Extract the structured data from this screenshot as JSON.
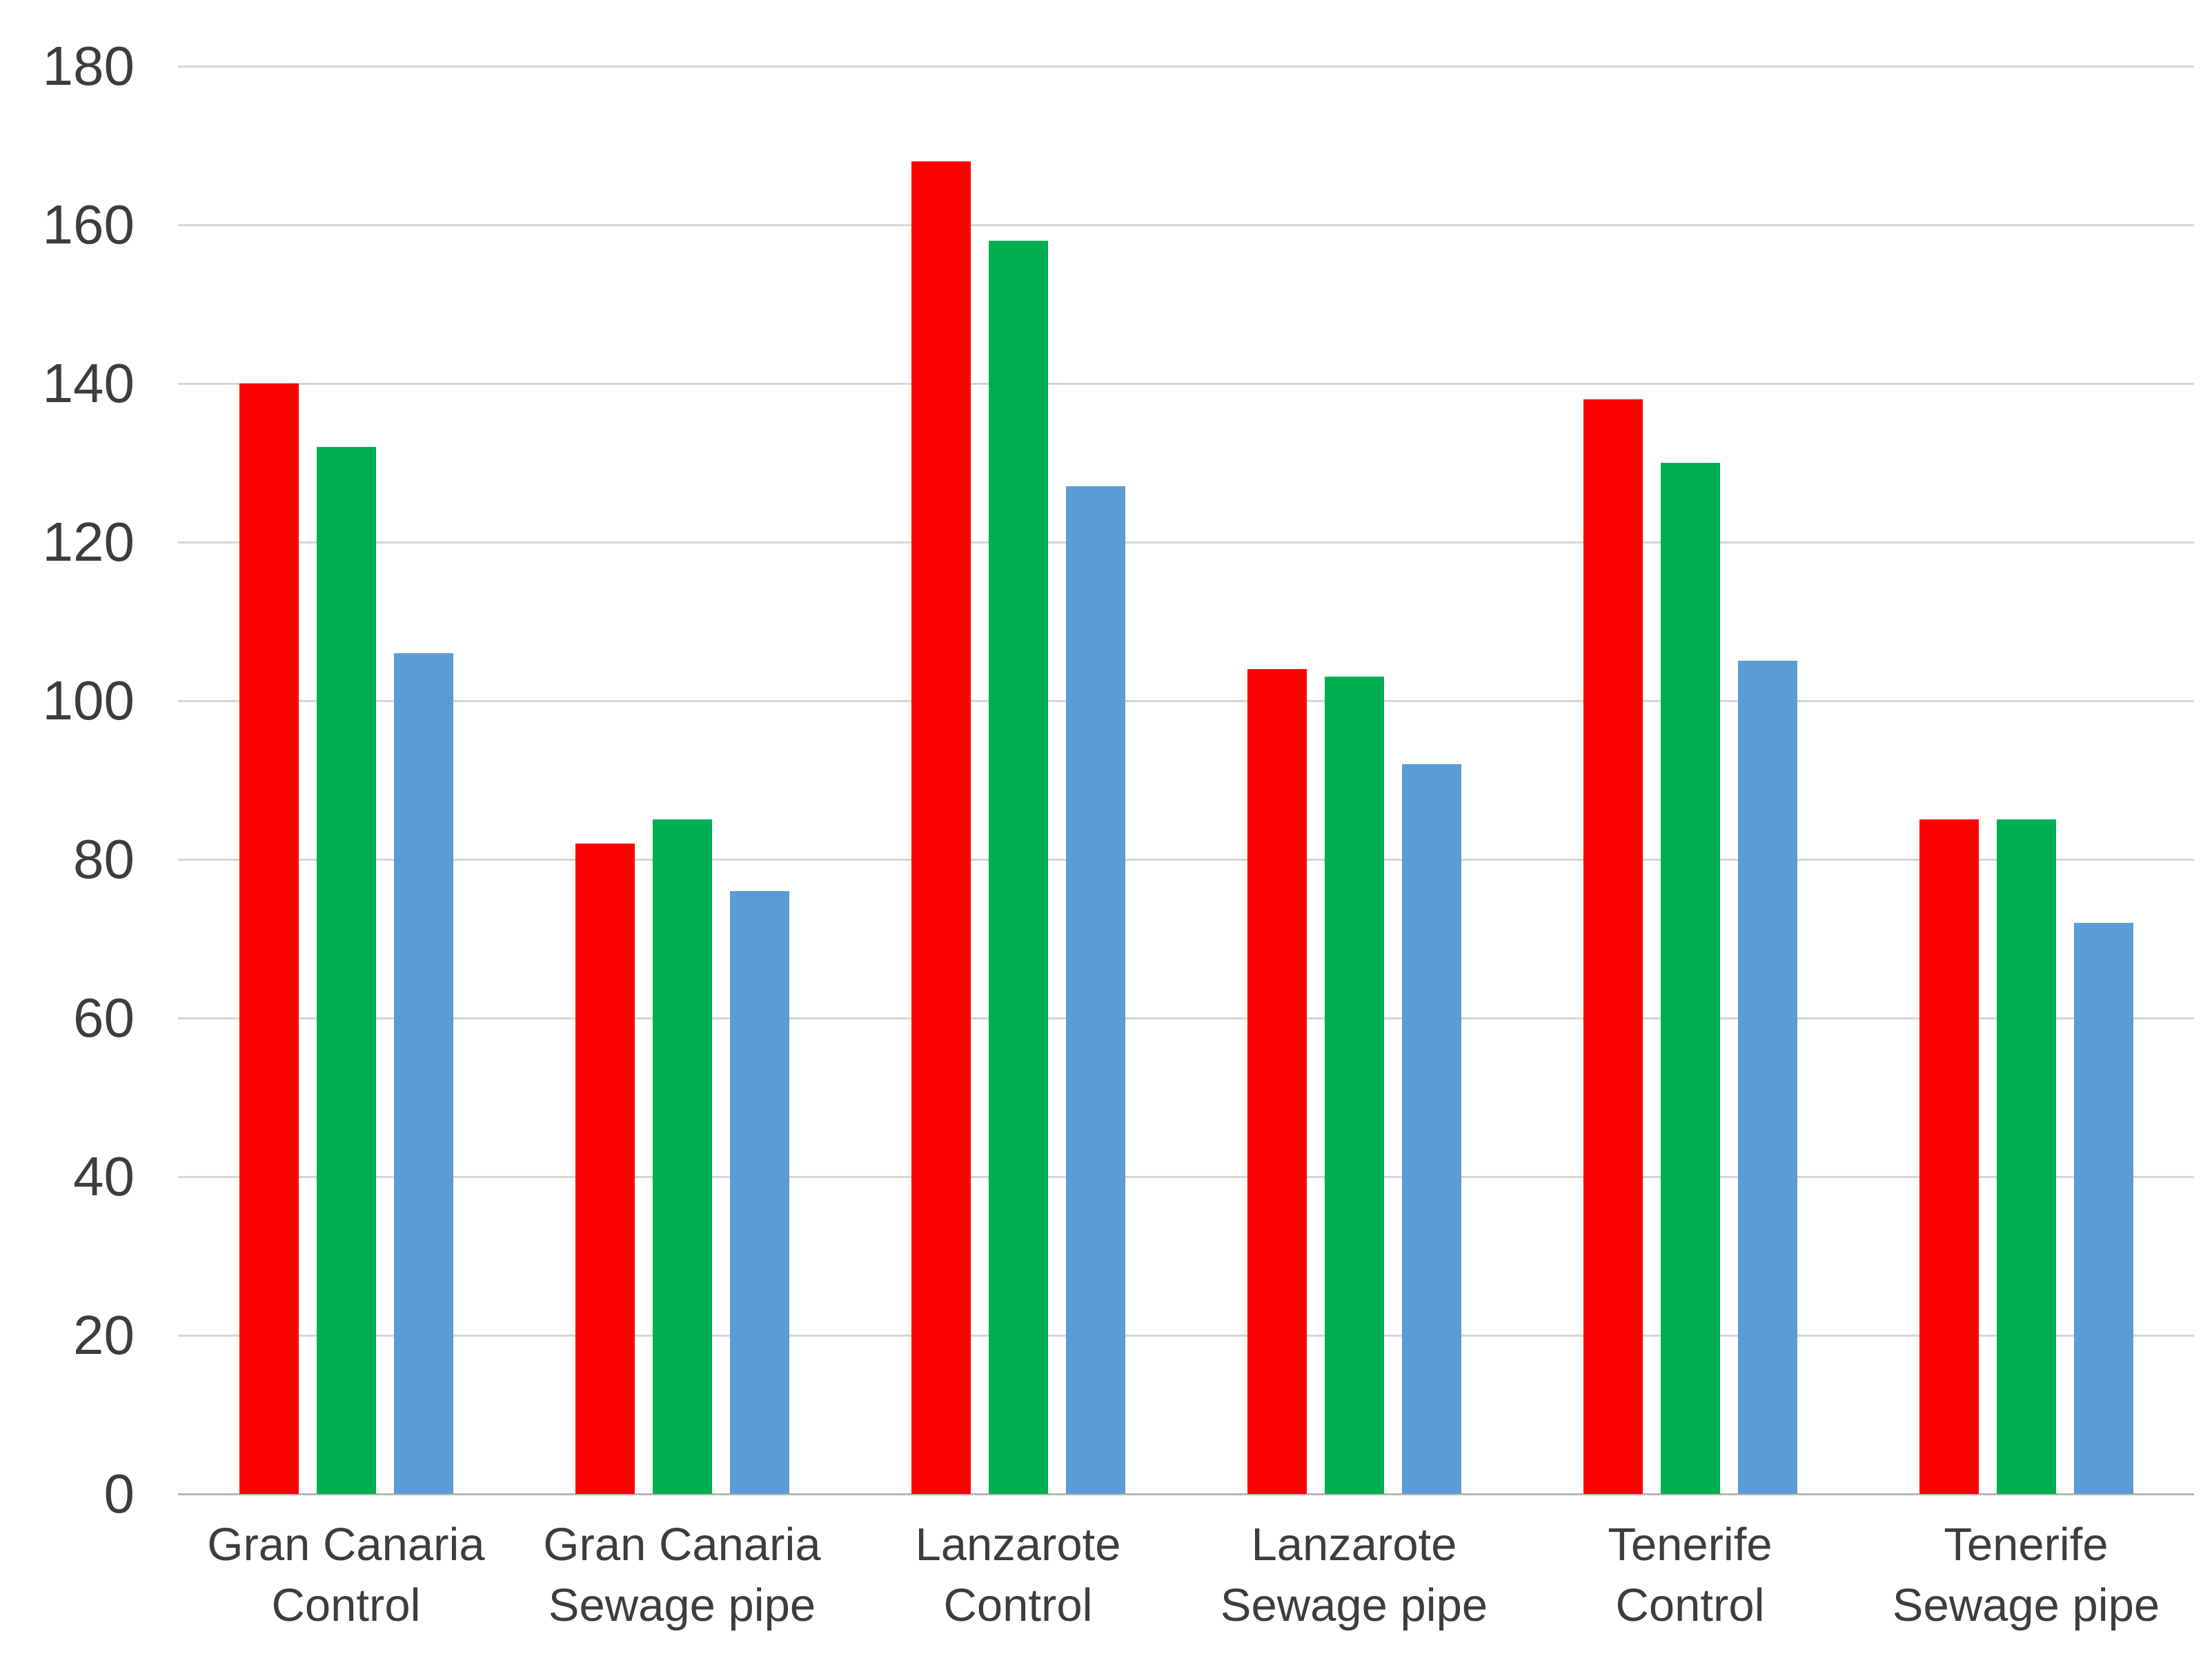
{
  "chart_data": {
    "type": "bar",
    "title": "",
    "xlabel": "",
    "ylabel": "",
    "legend": "none",
    "grid": true,
    "ylim": [
      0,
      180
    ],
    "ytick_step": 20,
    "yticks": [
      0,
      20,
      40,
      60,
      80,
      100,
      120,
      140,
      160,
      180
    ],
    "categories": [
      [
        "Gran Canaria",
        "Control"
      ],
      [
        "Gran Canaria",
        "Sewage pipe"
      ],
      [
        "Lanzarote",
        "Control"
      ],
      [
        "Lanzarote",
        "Sewage pipe"
      ],
      [
        "Tenerife",
        "Control"
      ],
      [
        "Tenerife",
        "Sewage pipe"
      ]
    ],
    "series": [
      {
        "name": "red",
        "color": "#ff0000",
        "values": [
          140,
          82,
          168,
          104,
          138,
          85
        ]
      },
      {
        "name": "green",
        "color": "#00b050",
        "values": [
          132,
          85,
          158,
          103,
          130,
          85
        ]
      },
      {
        "name": "blue",
        "color": "#5b9bd5",
        "values": [
          106,
          76,
          127,
          92,
          105,
          72
        ]
      }
    ]
  },
  "colors": {
    "gridline": "#d6d6d6",
    "axis_line": "#b7b7b7",
    "tick_text": "#3d3d3d"
  }
}
